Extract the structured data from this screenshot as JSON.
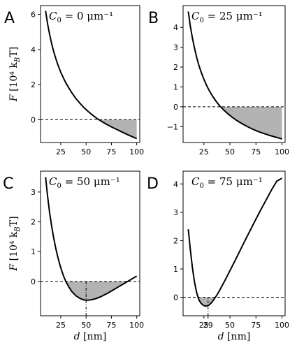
{
  "y_label": {
    "italic": "F",
    "rest": " [10⁴ k",
    "sub": "B",
    "end": "T]"
  },
  "x_label": {
    "italic": "d",
    "rest": " [nm]"
  },
  "chart_data": [
    {
      "type": "line",
      "panel": "A",
      "annotation": {
        "lhs": "C",
        "sub": "0",
        "rest": " = 0 μm⁻¹"
      },
      "xlim": [
        5,
        103
      ],
      "ylim": [
        -1.3,
        6.5
      ],
      "xticks": [
        25,
        50,
        75,
        100
      ],
      "xtick_labels": [
        "25",
        "50",
        "75",
        "100"
      ],
      "yticks": [
        0,
        2,
        4,
        6
      ],
      "ytick_labels": [
        "0",
        "2",
        "4",
        "6"
      ],
      "show_xlabel": false,
      "show_ylabel": true,
      "zero_line": true,
      "shade_below_zero": true,
      "marker_x": null,
      "x": [
        10,
        12,
        14,
        16,
        18,
        20,
        22,
        25,
        28,
        30,
        33,
        36,
        40,
        44,
        48,
        52,
        56,
        60,
        64,
        68,
        72,
        76,
        80,
        84,
        88,
        92,
        96,
        100
      ],
      "y": [
        6.2,
        5.45,
        4.85,
        4.33,
        3.88,
        3.5,
        3.15,
        2.7,
        2.33,
        2.1,
        1.8,
        1.53,
        1.2,
        0.93,
        0.68,
        0.47,
        0.28,
        0.1,
        -0.05,
        -0.19,
        -0.32,
        -0.44,
        -0.55,
        -0.66,
        -0.77,
        -0.88,
        -0.98,
        -1.08
      ]
    },
    {
      "type": "line",
      "panel": "B",
      "annotation": {
        "lhs": "C",
        "sub": "0",
        "rest": " = 25 μm⁻¹"
      },
      "xlim": [
        5,
        103
      ],
      "ylim": [
        -1.8,
        5.1
      ],
      "xticks": [
        25,
        50,
        75,
        100
      ],
      "xtick_labels": [
        "25",
        "50",
        "75",
        "100"
      ],
      "yticks": [
        -1,
        0,
        1,
        2,
        3,
        4
      ],
      "ytick_labels": [
        "−1",
        "0",
        "1",
        "2",
        "3",
        "4"
      ],
      "show_xlabel": false,
      "show_ylabel": false,
      "zero_line": true,
      "shade_below_zero": true,
      "marker_x": null,
      "x": [
        10,
        12,
        14,
        16,
        18,
        20,
        22,
        25,
        28,
        30,
        33,
        36,
        38,
        40,
        44,
        48,
        52,
        56,
        60,
        64,
        68,
        72,
        76,
        80,
        84,
        88,
        92,
        96,
        100
      ],
      "y": [
        4.8,
        4.05,
        3.45,
        2.95,
        2.5,
        2.12,
        1.8,
        1.38,
        1.03,
        0.83,
        0.56,
        0.33,
        0.19,
        0.06,
        -0.16,
        -0.35,
        -0.52,
        -0.67,
        -0.8,
        -0.92,
        -1.03,
        -1.13,
        -1.22,
        -1.3,
        -1.37,
        -1.44,
        -1.5,
        -1.56,
        -1.62
      ]
    },
    {
      "type": "line",
      "panel": "C",
      "annotation": {
        "lhs": "C",
        "sub": "0",
        "rest": " = 50 μm⁻¹"
      },
      "xlim": [
        5,
        103
      ],
      "ylim": [
        -1.15,
        3.7
      ],
      "xticks": [
        25,
        50,
        75,
        100
      ],
      "xtick_labels": [
        "25",
        "50",
        "75",
        "100"
      ],
      "yticks": [
        0,
        1,
        2,
        3
      ],
      "ytick_labels": [
        "0",
        "1",
        "2",
        "3"
      ],
      "show_xlabel": true,
      "show_ylabel": true,
      "zero_line": true,
      "shade_below_zero": true,
      "marker_x": 50,
      "x": [
        10,
        12,
        14,
        16,
        18,
        20,
        22,
        24,
        26,
        28,
        30,
        33,
        36,
        40,
        44,
        48,
        50,
        52,
        56,
        60,
        64,
        68,
        72,
        76,
        80,
        84,
        88,
        92,
        96,
        100
      ],
      "y": [
        3.5,
        2.85,
        2.3,
        1.85,
        1.46,
        1.12,
        0.83,
        0.57,
        0.35,
        0.16,
        0.0,
        -0.19,
        -0.34,
        -0.48,
        -0.57,
        -0.62,
        -0.63,
        -0.63,
        -0.61,
        -0.57,
        -0.52,
        -0.45,
        -0.38,
        -0.3,
        -0.22,
        -0.14,
        -0.06,
        0.02,
        0.1,
        0.18
      ]
    },
    {
      "type": "line",
      "panel": "D",
      "annotation": {
        "lhs": "C",
        "sub": "0",
        "rest": " = 75 μm⁻¹"
      },
      "xlim": [
        5,
        103
      ],
      "ylim": [
        -0.65,
        4.45
      ],
      "xticks": [
        25,
        29,
        50,
        75,
        100
      ],
      "xtick_labels": [
        "25",
        "29",
        "50",
        "75",
        "100"
      ],
      "yticks": [
        0,
        1,
        2,
        3,
        4
      ],
      "ytick_labels": [
        "0",
        "1",
        "2",
        "3",
        "4"
      ],
      "show_xlabel": true,
      "show_ylabel": false,
      "zero_line": true,
      "shade_below_zero": true,
      "marker_x": 29,
      "x": [
        10,
        12,
        14,
        16,
        18,
        20,
        22,
        24,
        26,
        28,
        29,
        30,
        32,
        34,
        36,
        38,
        40,
        45,
        50,
        55,
        60,
        65,
        70,
        75,
        80,
        85,
        90,
        95,
        100
      ],
      "y": [
        2.4,
        1.67,
        1.03,
        0.53,
        0.17,
        -0.07,
        -0.2,
        -0.27,
        -0.31,
        -0.3,
        -0.29,
        -0.27,
        -0.2,
        -0.11,
        -0.0,
        0.11,
        0.24,
        0.58,
        0.94,
        1.3,
        1.67,
        2.04,
        2.4,
        2.76,
        3.11,
        3.45,
        3.79,
        4.1,
        4.2
      ]
    }
  ]
}
